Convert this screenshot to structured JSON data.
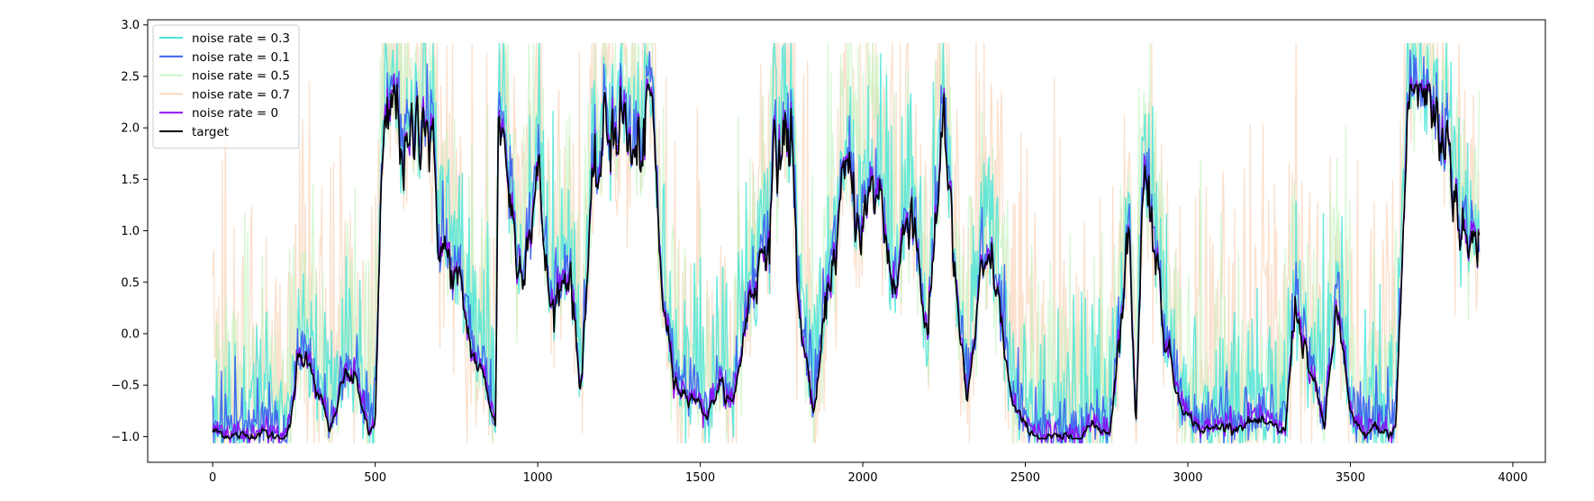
{
  "chart_data": {
    "type": "line",
    "title": "",
    "xlabel": "",
    "ylabel": "",
    "xlim": [
      -200,
      4100
    ],
    "ylim": [
      -1.25,
      3.05
    ],
    "x_ticks": [
      0,
      500,
      1000,
      1500,
      2000,
      2500,
      3000,
      3500,
      4000
    ],
    "y_ticks": [
      -1.0,
      -0.5,
      0.0,
      0.5,
      1.0,
      1.5,
      2.0,
      2.5,
      3.0
    ],
    "x_tick_labels": [
      "0",
      "500",
      "1000",
      "1500",
      "2000",
      "2500",
      "3000",
      "3500",
      "4000"
    ],
    "y_tick_labels": [
      "−1.0",
      "−0.5",
      "0.0",
      "0.5",
      "1.0",
      "1.5",
      "2.0",
      "2.5",
      "3.0"
    ],
    "grid": false,
    "legend_position": "top-left",
    "n_points": 3900,
    "target_envelope": {
      "x": [
        0,
        80,
        100,
        150,
        180,
        220,
        240,
        260,
        300,
        320,
        340,
        360,
        380,
        400,
        440,
        460,
        480,
        500,
        520,
        560,
        600,
        650,
        700,
        760,
        800,
        840,
        870,
        880,
        900,
        940,
        1000,
        1040,
        1100,
        1130,
        1160,
        1200,
        1250,
        1300,
        1350,
        1380,
        1420,
        1480,
        1520,
        1560,
        1600,
        1650,
        1700,
        1740,
        1780,
        1800,
        1850,
        1900,
        1950,
        2000,
        2050,
        2100,
        2150,
        2200,
        2250,
        2280,
        2320,
        2360,
        2400,
        2460,
        2500,
        2550,
        2600,
        2650,
        2700,
        2760,
        2800,
        2820,
        2840,
        2860,
        2880,
        2920,
        2960,
        3000,
        3050,
        3100,
        3150,
        3200,
        3250,
        3300,
        3330,
        3380,
        3420,
        3460,
        3500,
        3540,
        3580,
        3620,
        3640,
        3680,
        3700,
        3740,
        3780,
        3800,
        3830,
        3860,
        3900
      ],
      "y": [
        -0.95,
        -1.0,
        -1.0,
        -0.95,
        -1.0,
        -1.0,
        -0.9,
        -0.3,
        -0.2,
        -0.55,
        -0.7,
        -0.95,
        -0.8,
        -0.4,
        -0.45,
        -0.7,
        -1.0,
        -0.85,
        1.5,
        2.3,
        1.6,
        2.4,
        0.9,
        0.4,
        -0.2,
        -0.5,
        -0.9,
        2.3,
        1.8,
        0.6,
        1.5,
        0.2,
        0.7,
        -0.6,
        1.0,
        1.8,
        2.2,
        1.6,
        2.2,
        0.5,
        -0.5,
        -0.6,
        -0.8,
        -0.5,
        -0.7,
        0.3,
        0.9,
        1.8,
        2.0,
        0.3,
        -0.8,
        0.6,
        1.5,
        1.1,
        1.4,
        0.4,
        1.4,
        -0.1,
        2.3,
        0.6,
        -0.7,
        0.4,
        0.7,
        -0.7,
        -0.9,
        -1.02,
        -1.02,
        -1.02,
        -0.9,
        -0.95,
        0.3,
        1.0,
        -0.9,
        1.3,
        1.5,
        0.2,
        -0.5,
        -0.8,
        -0.95,
        -0.9,
        -0.9,
        -0.85,
        -0.9,
        -0.95,
        0.3,
        -0.4,
        -0.9,
        0.3,
        -0.8,
        -1.0,
        -0.9,
        -1.0,
        -0.9,
        2.4,
        2.4,
        2.3,
        1.8,
        2.0,
        1.2,
        0.8,
        1.0
      ]
    },
    "series": [
      {
        "name": "noise rate = 0.3",
        "color": "#4ee5d8",
        "opacity": 0.85,
        "noise": 0.3
      },
      {
        "name": "noise rate = 0.1",
        "color": "#3a5cf0",
        "opacity": 0.9,
        "noise": 0.1
      },
      {
        "name": "noise rate = 0.5",
        "color": "#b8f4b6",
        "opacity": 0.55,
        "noise": 0.5
      },
      {
        "name": "noise rate = 0.7",
        "color": "#f8c9a6",
        "opacity": 0.55,
        "noise": 0.7
      },
      {
        "name": "noise rate = 0",
        "color": "#8a10f5",
        "opacity": 1.0,
        "noise": 0.0
      },
      {
        "name": "target",
        "color": "#000000",
        "opacity": 1.0,
        "noise": -1
      }
    ],
    "draw_order": [
      "noise rate = 0.7",
      "noise rate = 0.5",
      "noise rate = 0.3",
      "noise rate = 0.1",
      "noise rate = 0",
      "target"
    ]
  }
}
